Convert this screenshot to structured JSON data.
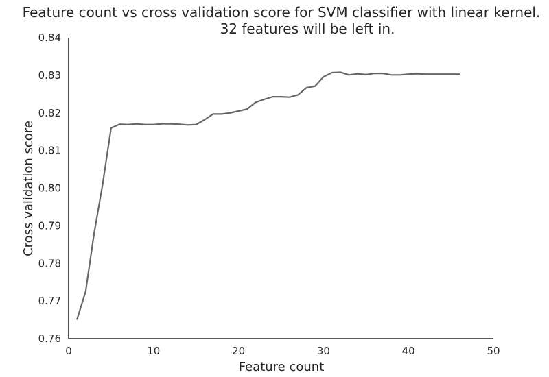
{
  "chart_data": {
    "type": "line",
    "title": "Feature count vs cross validation score for SVM classifier with linear kernel.",
    "subtitle": "32 features will be left in.",
    "xlabel": "Feature count",
    "ylabel": "Cross validation score",
    "xlim": [
      0,
      50
    ],
    "ylim": [
      0.76,
      0.84
    ],
    "x_ticks": [
      0,
      10,
      20,
      30,
      40,
      50
    ],
    "y_ticks": [
      0.76,
      0.77,
      0.78,
      0.79,
      0.8,
      0.81,
      0.82,
      0.83,
      0.84
    ],
    "x_tick_labels": [
      "0",
      "10",
      "20",
      "30",
      "40",
      "50"
    ],
    "y_tick_labels": [
      "0.76",
      "0.77",
      "0.78",
      "0.79",
      "0.80",
      "0.81",
      "0.82",
      "0.83",
      "0.84"
    ],
    "grid": false,
    "series": [
      {
        "color": "#666666",
        "x": [
          1,
          2,
          3,
          4,
          5,
          6,
          7,
          8,
          9,
          10,
          11,
          12,
          13,
          14,
          15,
          16,
          17,
          18,
          19,
          20,
          21,
          22,
          23,
          24,
          25,
          26,
          27,
          28,
          29,
          30,
          31,
          32,
          33,
          34,
          35,
          36,
          37,
          38,
          39,
          40,
          41,
          42,
          43,
          44,
          45,
          46
        ],
        "values": [
          0.7652,
          0.7725,
          0.788,
          0.801,
          0.816,
          0.817,
          0.8169,
          0.8171,
          0.8169,
          0.8169,
          0.8171,
          0.8171,
          0.817,
          0.8168,
          0.8169,
          0.8182,
          0.8197,
          0.8197,
          0.82,
          0.8205,
          0.821,
          0.8228,
          0.8236,
          0.8243,
          0.8243,
          0.8242,
          0.8248,
          0.8267,
          0.8271,
          0.8296,
          0.8307,
          0.8308,
          0.8301,
          0.8304,
          0.8302,
          0.8305,
          0.8305,
          0.8301,
          0.8301,
          0.8303,
          0.8304,
          0.8303,
          0.8303,
          0.8303,
          0.8303,
          0.8303
        ]
      }
    ]
  }
}
